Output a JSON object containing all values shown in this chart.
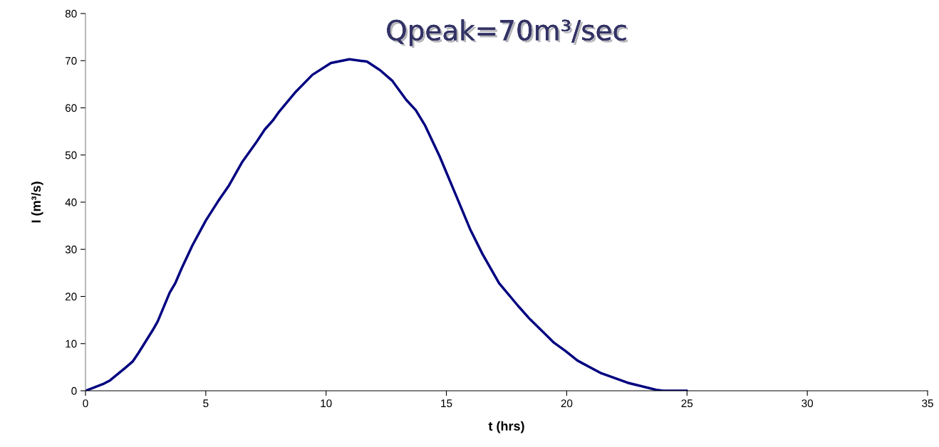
{
  "chart_data": {
    "type": "line",
    "title": "Qpeak=70m³/sec",
    "xlabel": "t (hrs)",
    "ylabel": "I (m³/s)",
    "xlim": [
      0,
      35
    ],
    "ylim": [
      0,
      80
    ],
    "xticks": [
      0,
      5,
      10,
      15,
      20,
      25,
      30,
      35
    ],
    "yticks": [
      0,
      10,
      20,
      30,
      40,
      50,
      60,
      70,
      80
    ],
    "grid": false,
    "series": [
      {
        "color": "#000080",
        "x": [
          0,
          0.72,
          1.02,
          1.66,
          1.96,
          2.2,
          2.8,
          3.0,
          3.5,
          3.74,
          4.0,
          4.44,
          5.0,
          5.5,
          5.97,
          6.5,
          7.06,
          7.45,
          7.8,
          8.05,
          8.74,
          9.43,
          10.2,
          10.97,
          11.7,
          12.24,
          12.74,
          13.33,
          13.73,
          14.12,
          14.72,
          15.51,
          16.0,
          16.5,
          17.19,
          17.98,
          18.47,
          19.47,
          19.96,
          20.45,
          21.44,
          22.53,
          23.72,
          24.0,
          25.0
        ],
        "values": [
          0,
          1.4,
          2.2,
          4.9,
          6.2,
          8.0,
          12.9,
          14.7,
          20.8,
          22.9,
          26.0,
          30.8,
          36.1,
          40.1,
          43.6,
          48.4,
          52.4,
          55.4,
          57.4,
          59.2,
          63.4,
          67.0,
          69.5,
          70.3,
          69.8,
          68.0,
          65.8,
          61.7,
          59.5,
          56.2,
          49.7,
          40.1,
          34.1,
          29.0,
          22.8,
          18.0,
          15.2,
          10.2,
          8.4,
          6.4,
          3.7,
          1.7,
          0.2,
          0,
          0
        ]
      }
    ]
  }
}
